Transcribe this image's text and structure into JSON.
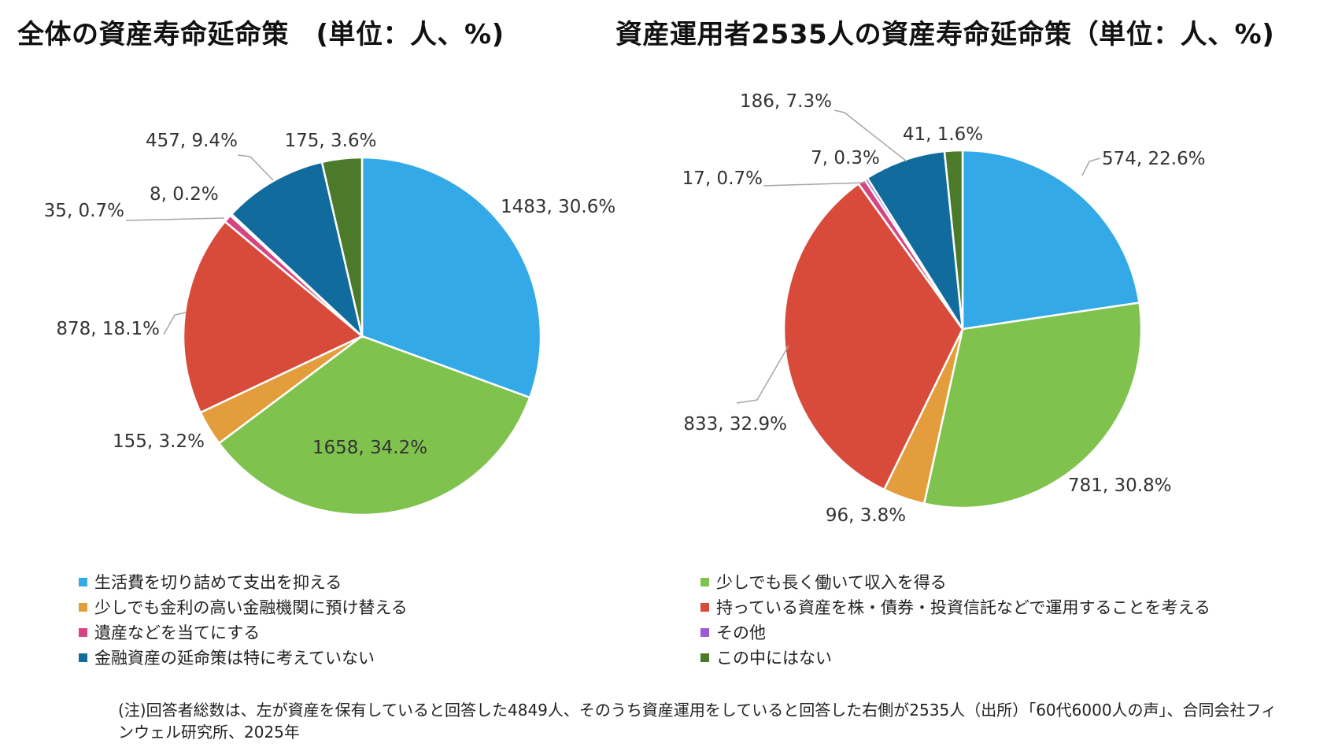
{
  "titles": {
    "left": "全体の資産寿命延命策　(単位：人、%)",
    "right": "資産運用者2535人の資産寿命延命策（単位：人、%)"
  },
  "legend": [
    {
      "label": "生活費を切り詰めて支出を抑える",
      "color": "#33a9e8"
    },
    {
      "label": "少しでも長く働いて収入を得る",
      "color": "#7fc24e"
    },
    {
      "label": "少しでも金利の高い金融機関に預け替える",
      "color": "#e49d3c"
    },
    {
      "label": "持っている資産を株・債券・投資信託などで運用することを考える",
      "color": "#d84b3a"
    },
    {
      "label": "遺産などを当てにする",
      "color": "#d6457f"
    },
    {
      "label": "その他",
      "color": "#9c5bd6"
    },
    {
      "label": "金融資産の延命策は特に考えていない",
      "color": "#116b9d"
    },
    {
      "label": "この中にはない",
      "color": "#4b7a2b"
    }
  ],
  "note": "(注)回答者総数は、左が資産を保有していると回答した4849人、そのうち資産運用をしていると回答した右側が2535人（出所）「60代6000人の声」、合同会社フィンウェル研究所、2025年",
  "chart_data": [
    {
      "type": "pie",
      "title": "全体の資産寿命延命策　(単位：人、%)",
      "categories": [
        "生活費を切り詰めて支出を抑える",
        "少しでも長く働いて収入を得る",
        "少しでも金利の高い金融機関に預け替える",
        "持っている資産を株・債券・投資信託などで運用することを考える",
        "遺産などを当てにする",
        "その他",
        "金融資産の延命策は特に考えていない",
        "この中にはない"
      ],
      "values": [
        1483,
        1658,
        155,
        878,
        35,
        8,
        457,
        175
      ],
      "percents": [
        30.6,
        34.2,
        3.2,
        18.1,
        0.7,
        0.2,
        9.4,
        3.6
      ],
      "labels": [
        "1483, 30.6%",
        "1658, 34.2%",
        "155, 3.2%",
        "878, 18.1%",
        "35, 0.7%",
        "8, 0.2%",
        "457, 9.4%",
        "175, 3.6%"
      ]
    },
    {
      "type": "pie",
      "title": "資産運用者2535人の資産寿命延命策（単位：人、%)",
      "categories": [
        "生活費を切り詰めて支出を抑える",
        "少しでも長く働いて収入を得る",
        "少しでも金利の高い金融機関に預け替える",
        "持っている資産を株・債券・投資信託などで運用することを考える",
        "遺産などを当てにする",
        "その他",
        "金融資産の延命策は特に考えていない",
        "この中にはない"
      ],
      "values": [
        574,
        781,
        96,
        833,
        17,
        7,
        186,
        41
      ],
      "percents": [
        22.6,
        30.8,
        3.8,
        32.9,
        0.7,
        0.3,
        7.3,
        1.6
      ],
      "labels": [
        "574, 22.6%",
        "781, 30.8%",
        "96, 3.8%",
        "833, 32.9%",
        "17, 0.7%",
        "7, 0.3%",
        "186, 7.3%",
        "41, 1.6%"
      ]
    }
  ]
}
